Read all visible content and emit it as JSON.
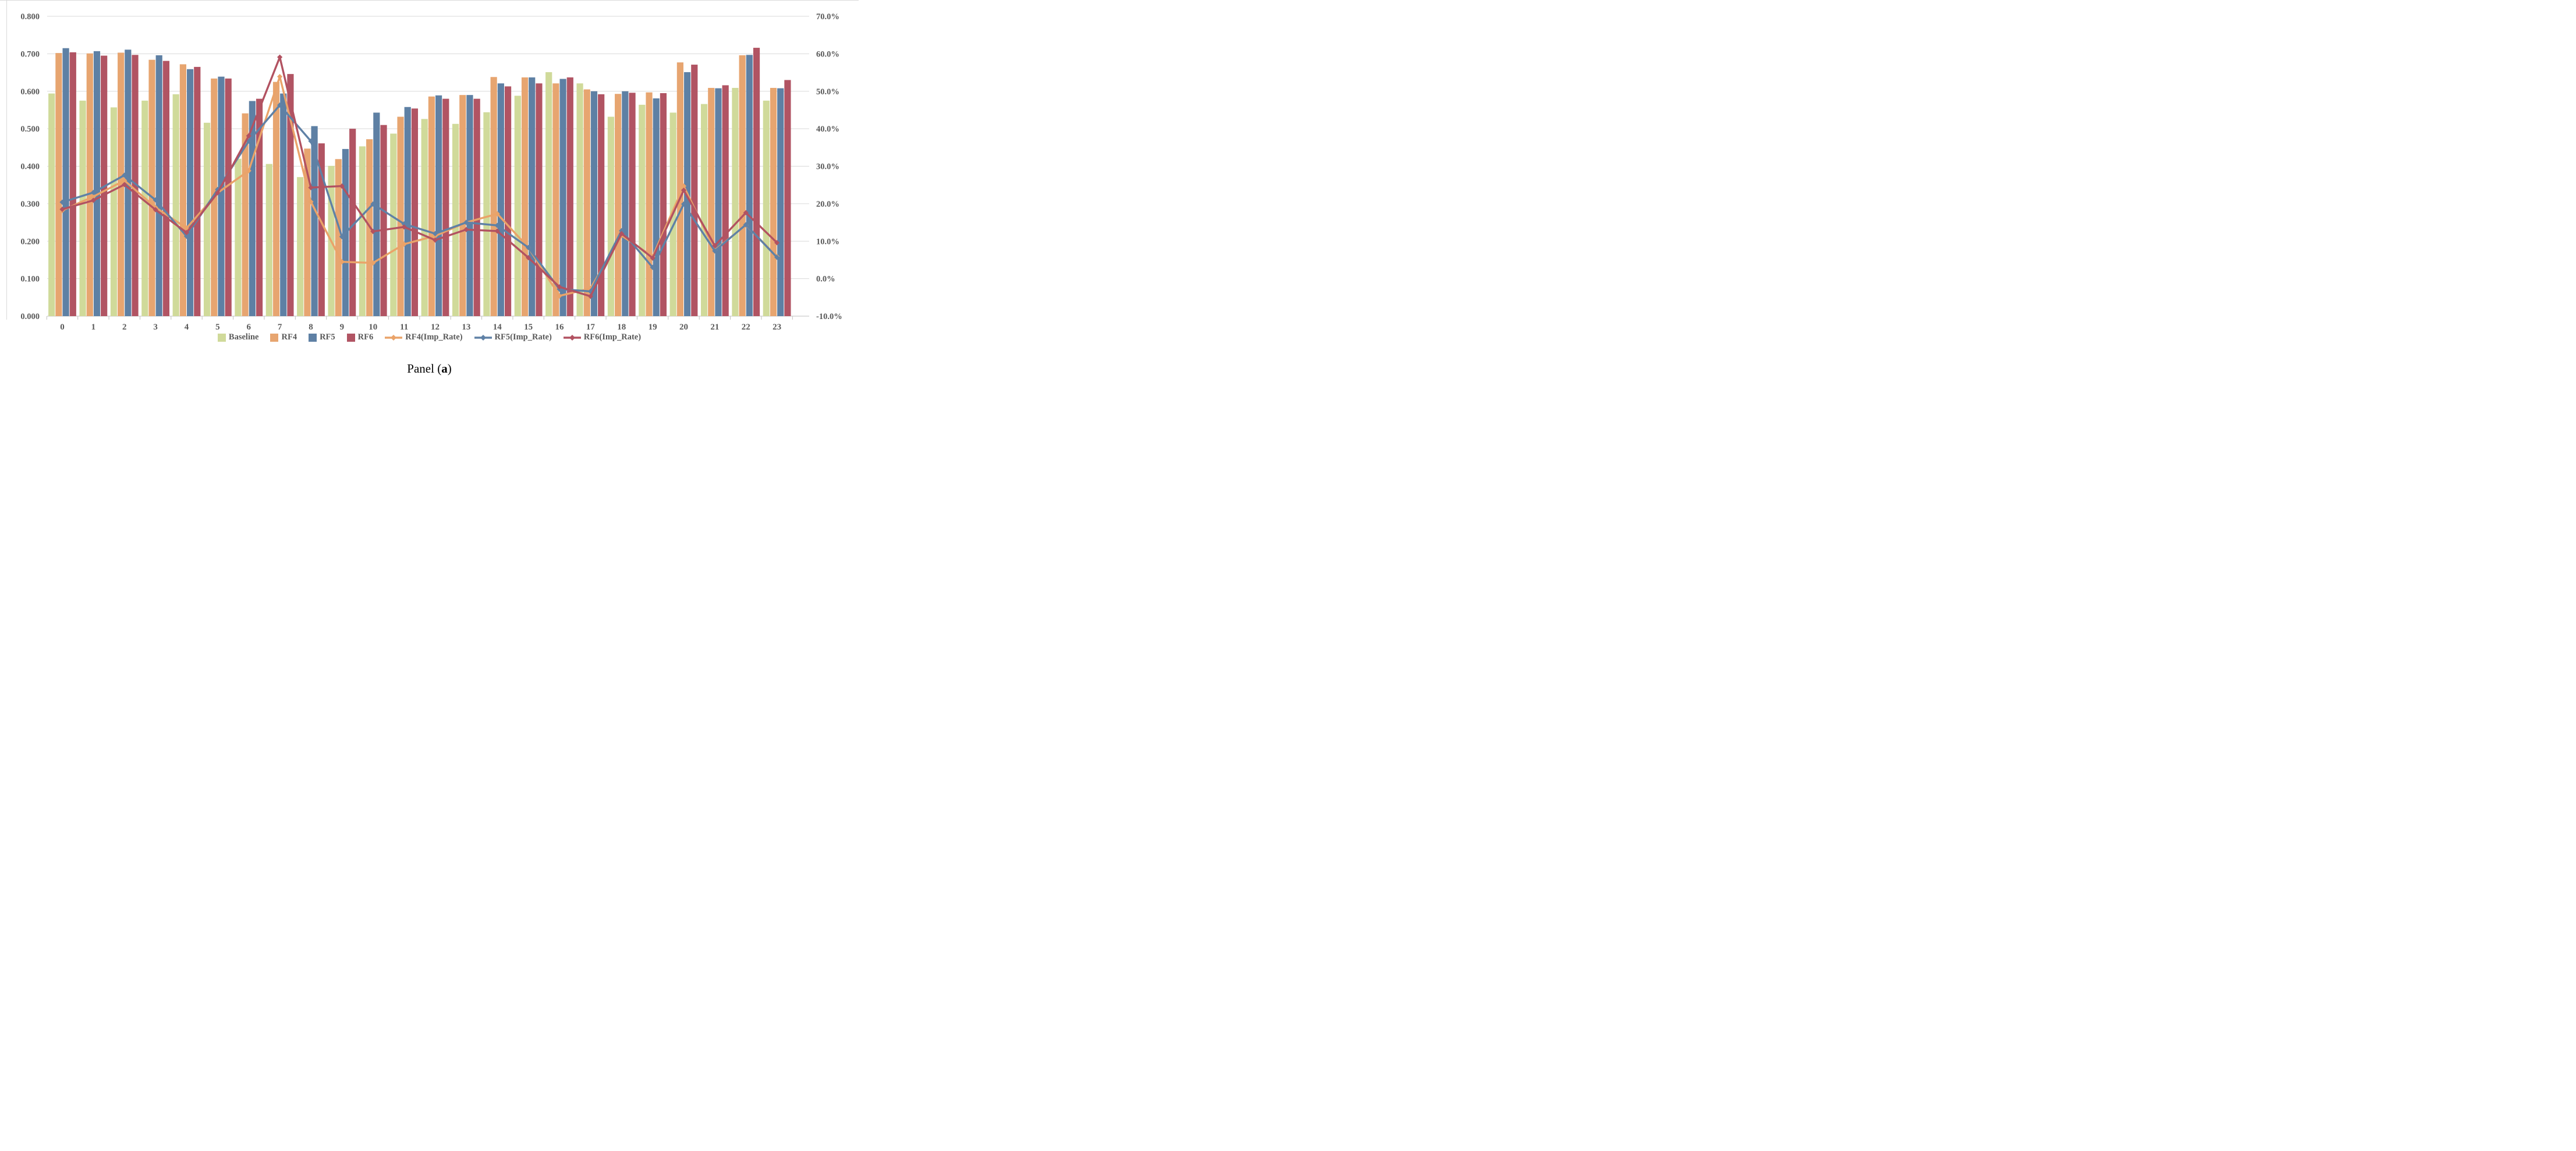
{
  "figure": {
    "caption": {
      "prefix": "Panel (",
      "emphasis": "a",
      "suffix": ")"
    }
  },
  "colors": {
    "gridline": "#d9d9d9",
    "axis_line": "#bfbfbf",
    "axis_text": "#595959",
    "background": "#ffffff"
  },
  "chart_data": {
    "type": "bar",
    "subtype": "bar-line-combo-dual-axis",
    "categories": [
      "0",
      "1",
      "2",
      "3",
      "4",
      "5",
      "6",
      "7",
      "8",
      "9",
      "10",
      "11",
      "12",
      "13",
      "14",
      "15",
      "16",
      "17",
      "18",
      "19",
      "20",
      "21",
      "22",
      "23"
    ],
    "left_axis": {
      "min": 0.0,
      "max": 0.8,
      "step": 0.1,
      "tick_labels": [
        "0.000",
        "0.100",
        "0.200",
        "0.300",
        "0.400",
        "0.500",
        "0.600",
        "0.700",
        "0.800"
      ]
    },
    "right_axis": {
      "min": -10.0,
      "max": 70.0,
      "step": 10.0,
      "tick_labels": [
        "-10.0%",
        "0.0%",
        "10.0%",
        "20.0%",
        "30.0%",
        "40.0%",
        "50.0%",
        "60.0%",
        "70.0%"
      ]
    },
    "grid": true,
    "legend_position": "bottom",
    "bar_series": [
      {
        "name": "Baseline",
        "color": "#d0da9a",
        "values": [
          0.594,
          0.575,
          0.557,
          0.575,
          0.592,
          0.516,
          0.42,
          0.406,
          0.371,
          0.401,
          0.453,
          0.487,
          0.526,
          0.513,
          0.544,
          0.588,
          0.651,
          0.621,
          0.532,
          0.564,
          0.543,
          0.566,
          0.609,
          0.575
        ]
      },
      {
        "name": "RF4",
        "color": "#e7a570",
        "values": [
          0.702,
          0.701,
          0.703,
          0.684,
          0.672,
          0.634,
          0.541,
          0.625,
          0.447,
          0.419,
          0.472,
          0.532,
          0.586,
          0.59,
          0.638,
          0.637,
          0.621,
          0.605,
          0.593,
          0.597,
          0.677,
          0.609,
          0.696,
          0.609
        ]
      },
      {
        "name": "RF5",
        "color": "#5e80a4",
        "values": [
          0.715,
          0.707,
          0.711,
          0.696,
          0.659,
          0.639,
          0.574,
          0.594,
          0.507,
          0.446,
          0.543,
          0.558,
          0.589,
          0.59,
          0.621,
          0.637,
          0.633,
          0.6,
          0.6,
          0.581,
          0.651,
          0.608,
          0.697,
          0.608
        ]
      },
      {
        "name": "RF6",
        "color": "#b15463",
        "values": [
          0.704,
          0.695,
          0.697,
          0.681,
          0.665,
          0.634,
          0.58,
          0.646,
          0.461,
          0.5,
          0.51,
          0.554,
          0.58,
          0.58,
          0.613,
          0.621,
          0.637,
          0.592,
          0.596,
          0.595,
          0.671,
          0.616,
          0.716,
          0.63
        ]
      }
    ],
    "line_series": [
      {
        "name": "RF4(Imp_Rate)",
        "color": "#eaa369",
        "axis": "right",
        "values": [
          18.2,
          21.9,
          26.2,
          19.0,
          13.5,
          22.9,
          28.8,
          53.9,
          20.5,
          4.5,
          4.2,
          9.2,
          11.4,
          15.0,
          17.3,
          8.3,
          -4.6,
          -2.6,
          11.5,
          5.9,
          24.7,
          7.6,
          14.3,
          5.9
        ]
      },
      {
        "name": "RF5(Imp_Rate)",
        "color": "#5f81a6",
        "axis": "right",
        "values": [
          20.4,
          23.0,
          27.6,
          21.0,
          11.3,
          23.8,
          36.7,
          46.3,
          36.7,
          11.2,
          19.9,
          14.6,
          12.0,
          15.0,
          14.2,
          8.3,
          -2.8,
          -3.4,
          12.8,
          3.0,
          19.9,
          7.4,
          14.4,
          5.7
        ]
      },
      {
        "name": "RF6(Imp_Rate)",
        "color": "#b25261",
        "axis": "right",
        "values": [
          18.5,
          20.9,
          25.1,
          18.4,
          12.3,
          22.9,
          38.1,
          59.1,
          24.3,
          24.7,
          12.6,
          13.8,
          10.3,
          13.1,
          12.7,
          5.6,
          -2.2,
          -4.7,
          12.0,
          5.5,
          23.6,
          8.8,
          17.6,
          9.6
        ]
      }
    ]
  }
}
